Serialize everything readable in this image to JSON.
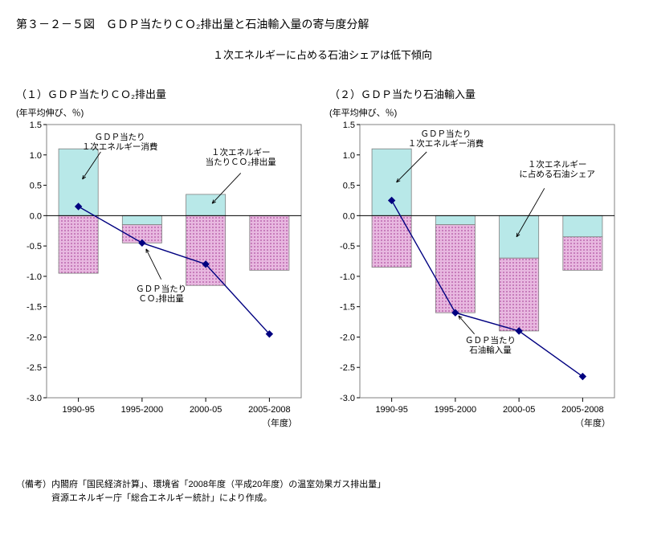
{
  "main_title": "第３－２－５図　ＧＤＰ当たりＣＯ₂排出量と石油輸入量の寄与度分解",
  "subtitle": "１次エネルギーに占める石油シェアは低下傾向",
  "footnote1": "（備考）内閣府「国民経済計算」、環境省「2008年度（平成20年度）の温室効果ガス排出量」",
  "footnote2": "　　　　資源エネルギー庁「総合エネルギー統計」により作成。",
  "xaxis_label": "（年度）",
  "yaxis_label": "(年平均伸び、％)",
  "categories": [
    "1990-95",
    "1995-2000",
    "2000-05",
    "2005-2008"
  ],
  "colors": {
    "bar_cyan": "#b8e8e8",
    "bar_magenta": "#e8b8e0",
    "border": "#808080",
    "line": "#000080",
    "marker": "#000080",
    "grid": "#808080",
    "axis": "#000000",
    "text": "#000000"
  },
  "chart1": {
    "title": "（１）ＧＤＰ当たりＣＯ₂排出量",
    "ylim": [
      -3.0,
      1.5
    ],
    "ytick_step": 0.5,
    "bars_top": [
      1.1,
      -0.15,
      0.35,
      0.0
    ],
    "bars_bottom": [
      -0.95,
      -0.3,
      -1.15,
      -0.9
    ],
    "line_values": [
      0.15,
      -0.45,
      -0.8,
      -1.95
    ],
    "label_top": "ＧＤＰ当たり\n１次エネルギー消費",
    "label_bottom": "１次エネルギー\n当たりＣＯ₂排出量",
    "label_line": "ＧＤＰ当たり\nＣＯ₂排出量"
  },
  "chart2": {
    "title": "（２）ＧＤＰ当たり石油輸入量",
    "ylim": [
      -3.0,
      1.5
    ],
    "ytick_step": 0.5,
    "bars_top": [
      1.1,
      -0.15,
      -0.7,
      -0.35
    ],
    "bars_bottom": [
      -0.85,
      -1.45,
      -1.2,
      -0.55
    ],
    "line_values": [
      0.25,
      -1.6,
      -1.9,
      -2.65
    ],
    "label_top": "ＧＤＰ当たり\n１次エネルギー消費",
    "label_bottom": "１次エネルギー\nに占める石油シェア",
    "label_line": "ＧＤＰ当たり\n石油輸入量"
  }
}
